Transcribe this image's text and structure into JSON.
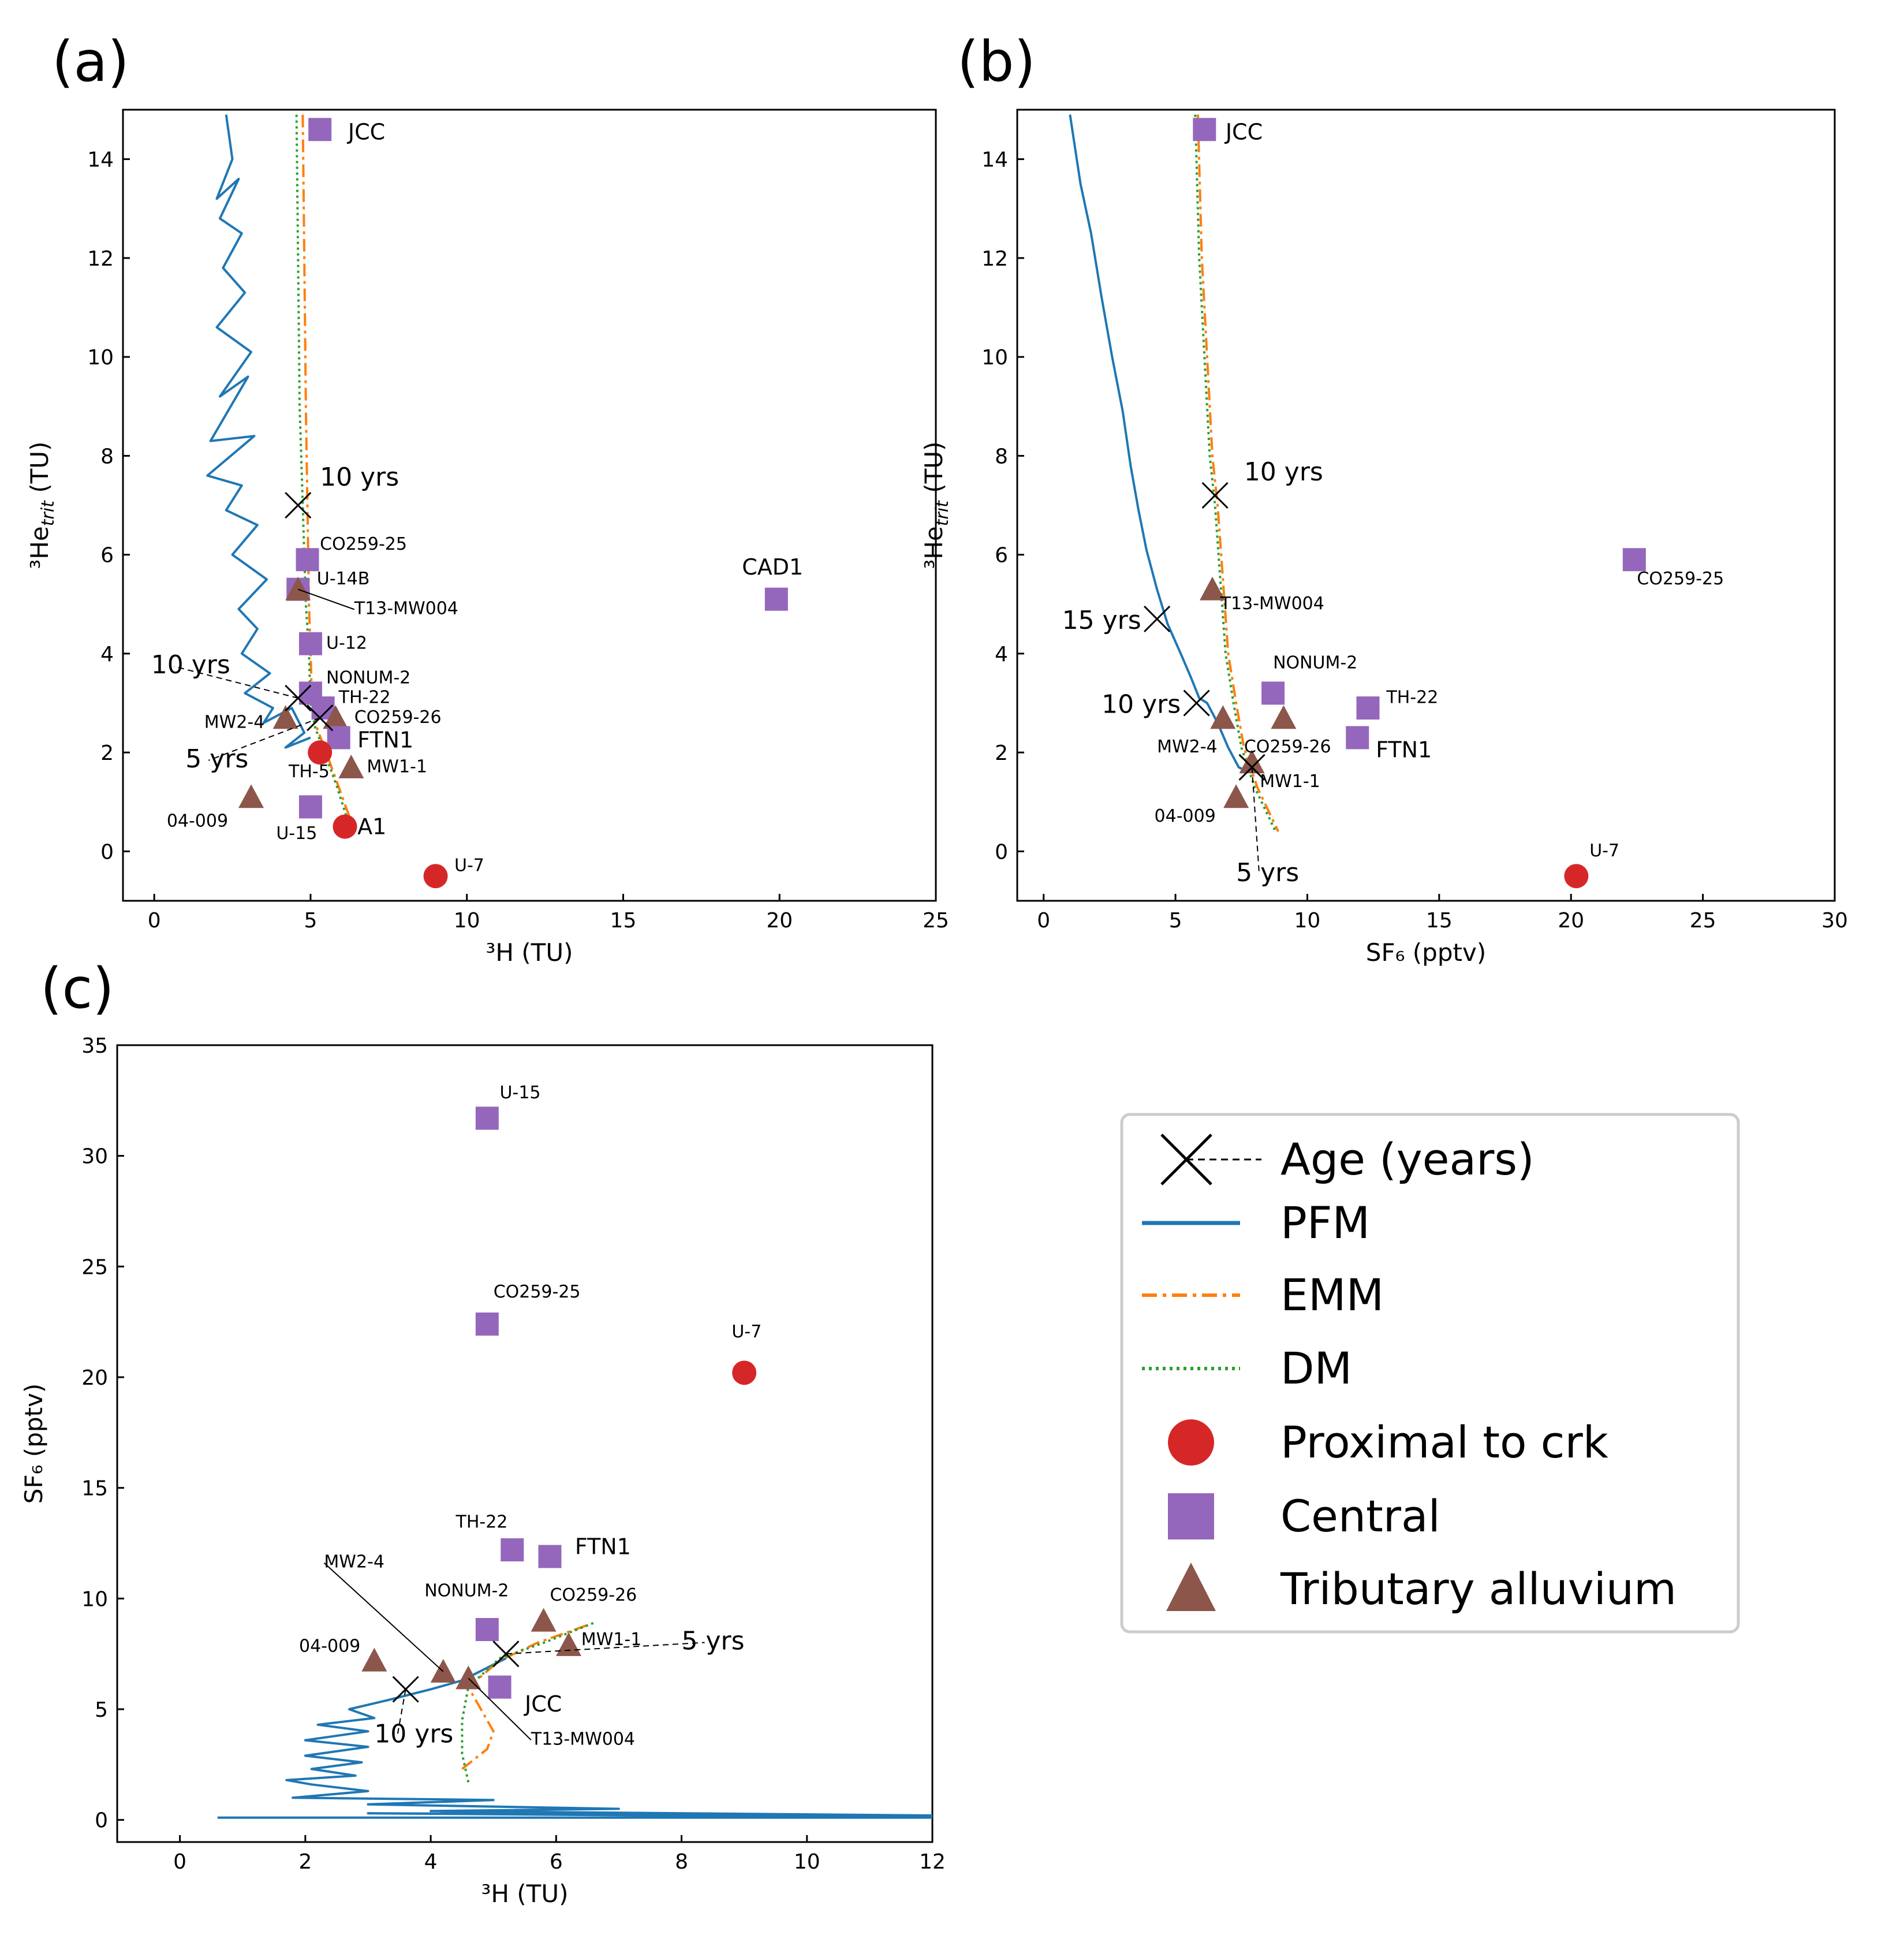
{
  "colors": {
    "pfm": "#1f77b4",
    "emm": "#ff7f0e",
    "dm": "#2ca02c",
    "proximal": "#d62728",
    "central": "#9467bd",
    "tributary": "#8c564b",
    "age": "#000000"
  },
  "legend": {
    "age": "Age (years)",
    "pfm": "PFM",
    "emm": "EMM",
    "dm": "DM",
    "proximal": "Proximal to crk",
    "central": "Central",
    "tributary": "Tributary alluvium"
  },
  "chart_data": [
    {
      "id": "a",
      "type": "scatter",
      "panel_label": "(a)",
      "xlabel": "³H (TU)",
      "ylabel": "³He",
      "ylabel_sub": "trit",
      "ylabel_unit": " (TU)",
      "xlim": [
        -1,
        25
      ],
      "ylim": [
        -1,
        15
      ],
      "xticks": [
        0,
        5,
        10,
        15,
        20,
        25
      ],
      "yticks": [
        0,
        2,
        4,
        6,
        8,
        10,
        12,
        14
      ],
      "models": {
        "pfm": [
          [
            2.3,
            14.9
          ],
          [
            2.5,
            14.0
          ],
          [
            2.0,
            13.2
          ],
          [
            2.7,
            13.6
          ],
          [
            2.1,
            12.8
          ],
          [
            2.8,
            12.5
          ],
          [
            2.2,
            11.8
          ],
          [
            2.9,
            11.3
          ],
          [
            2.0,
            10.6
          ],
          [
            3.1,
            10.1
          ],
          [
            2.1,
            9.2
          ],
          [
            3.0,
            9.6
          ],
          [
            1.8,
            8.3
          ],
          [
            3.2,
            8.4
          ],
          [
            1.7,
            7.6
          ],
          [
            2.8,
            7.4
          ],
          [
            2.3,
            6.9
          ],
          [
            3.3,
            6.6
          ],
          [
            2.5,
            6.0
          ],
          [
            3.6,
            5.5
          ],
          [
            2.7,
            4.9
          ],
          [
            3.3,
            4.5
          ],
          [
            2.8,
            4.0
          ],
          [
            3.7,
            3.6
          ],
          [
            2.9,
            3.2
          ],
          [
            3.8,
            2.9
          ],
          [
            3.5,
            2.6
          ],
          [
            4.4,
            2.9
          ],
          [
            4.8,
            2.4
          ],
          [
            4.2,
            2.1
          ],
          [
            5.0,
            2.3
          ]
        ],
        "emm": [
          [
            4.75,
            14.9
          ],
          [
            4.8,
            12.0
          ],
          [
            4.85,
            9.0
          ],
          [
            4.9,
            7.0
          ],
          [
            4.95,
            5.0
          ],
          [
            5.0,
            4.0
          ],
          [
            5.05,
            3.0
          ],
          [
            5.2,
            2.5
          ],
          [
            5.5,
            2.0
          ],
          [
            5.9,
            1.3
          ],
          [
            6.3,
            0.6
          ]
        ],
        "dm": [
          [
            4.55,
            14.9
          ],
          [
            4.6,
            12.0
          ],
          [
            4.65,
            9.0
          ],
          [
            4.75,
            7.0
          ],
          [
            4.85,
            5.0
          ],
          [
            4.95,
            4.0
          ],
          [
            5.0,
            3.0
          ],
          [
            5.15,
            2.5
          ],
          [
            5.45,
            2.0
          ],
          [
            5.85,
            1.3
          ],
          [
            6.2,
            0.6
          ]
        ]
      },
      "ages": [
        {
          "x": 4.6,
          "y": 7.0,
          "label": "10 yrs",
          "lx": 5.3,
          "ly": 7.4,
          "leader": false
        },
        {
          "x": 4.6,
          "y": 3.1,
          "label": "10 yrs",
          "lx": -0.1,
          "ly": 3.6,
          "leader": true
        },
        {
          "x": 5.3,
          "y": 2.7,
          "label": "5 yrs",
          "lx": 1.0,
          "ly": 1.7,
          "leader": true
        }
      ],
      "points": [
        {
          "label": "JCC",
          "x": 5.3,
          "y": 14.6,
          "group": "central",
          "lx": 6.2,
          "ly": 14.4,
          "big": true
        },
        {
          "label": "CO259-25",
          "x": 4.9,
          "y": 5.9,
          "group": "central",
          "lx": 5.3,
          "ly": 6.1
        },
        {
          "label": "U-14B",
          "x": 4.6,
          "y": 5.3,
          "group": "central",
          "lx": 5.2,
          "ly": 5.4
        },
        {
          "label": "T13-MW004",
          "x": 4.6,
          "y": 5.3,
          "group": "tributary",
          "lx": 6.4,
          "ly": 4.8,
          "leader": true
        },
        {
          "label": "U-12",
          "x": 5.0,
          "y": 4.2,
          "group": "central",
          "lx": 5.5,
          "ly": 4.1
        },
        {
          "label": "NONUM-2",
          "x": 5.0,
          "y": 3.2,
          "group": "central",
          "lx": 5.5,
          "ly": 3.4
        },
        {
          "label": "TH-22",
          "x": 5.4,
          "y": 2.9,
          "group": "central",
          "lx": 5.9,
          "ly": 3.0
        },
        {
          "label": "CO259-26",
          "x": 5.8,
          "y": 2.7,
          "group": "tributary",
          "lx": 6.4,
          "ly": 2.6
        },
        {
          "label": "MW2-4",
          "x": 4.2,
          "y": 2.7,
          "group": "tributary",
          "lx": 1.6,
          "ly": 2.5
        },
        {
          "label": "FTN1",
          "x": 5.9,
          "y": 2.3,
          "group": "central",
          "lx": 6.5,
          "ly": 2.1,
          "big": true
        },
        {
          "label": "",
          "x": 5.3,
          "y": 2.0,
          "group": "proximal"
        },
        {
          "label": "MW1-1",
          "x": 6.3,
          "y": 1.7,
          "group": "tributary",
          "lx": 6.8,
          "ly": 1.6
        },
        {
          "label": "TH-5",
          "x": 4.3,
          "y": 1.5,
          "group": "none",
          "lx": 4.3,
          "ly": 1.5
        },
        {
          "label": "04-009",
          "x": 3.1,
          "y": 1.1,
          "group": "tributary",
          "lx": 0.4,
          "ly": 0.5
        },
        {
          "label": "U-15",
          "x": 5.0,
          "y": 0.9,
          "group": "central",
          "lx": 3.9,
          "ly": 0.25
        },
        {
          "label": "A1",
          "x": 6.1,
          "y": 0.5,
          "group": "proximal",
          "lx": 6.5,
          "ly": 0.35,
          "big": true
        },
        {
          "label": "U-7",
          "x": 9.0,
          "y": -0.5,
          "group": "proximal",
          "lx": 9.6,
          "ly": -0.4
        },
        {
          "label": "CAD1",
          "x": 19.9,
          "y": 5.1,
          "group": "central",
          "lx": 18.8,
          "ly": 5.6,
          "big": true
        }
      ]
    },
    {
      "id": "b",
      "type": "scatter",
      "panel_label": "(b)",
      "xlabel": "SF₆ (pptv)",
      "ylabel": "³He",
      "ylabel_sub": "trit",
      "ylabel_unit": " (TU)",
      "xlim": [
        -1,
        30
      ],
      "ylim": [
        -1,
        15
      ],
      "xticks": [
        0,
        5,
        10,
        15,
        20,
        25,
        30
      ],
      "yticks": [
        0,
        2,
        4,
        6,
        8,
        10,
        12,
        14
      ],
      "models": {
        "pfm": [
          [
            1.0,
            14.9
          ],
          [
            1.4,
            13.5
          ],
          [
            1.8,
            12.5
          ],
          [
            2.2,
            11.2
          ],
          [
            2.6,
            10.0
          ],
          [
            3.0,
            8.9
          ],
          [
            3.3,
            7.8
          ],
          [
            3.6,
            6.9
          ],
          [
            3.9,
            6.1
          ],
          [
            4.3,
            5.3
          ],
          [
            4.7,
            4.6
          ],
          [
            5.2,
            4.0
          ],
          [
            5.6,
            3.5
          ],
          [
            5.9,
            3.1
          ],
          [
            6.2,
            3.0
          ],
          [
            6.6,
            2.6
          ],
          [
            7.0,
            2.1
          ],
          [
            7.4,
            1.7
          ],
          [
            7.8,
            1.6
          ]
        ],
        "emm": [
          [
            5.85,
            14.9
          ],
          [
            6.0,
            12.0
          ],
          [
            6.2,
            10.0
          ],
          [
            6.4,
            8.0
          ],
          [
            6.6,
            7.0
          ],
          [
            6.8,
            5.5
          ],
          [
            7.0,
            4.0
          ],
          [
            7.3,
            3.0
          ],
          [
            7.6,
            2.1
          ],
          [
            8.1,
            1.3
          ],
          [
            8.9,
            0.4
          ]
        ],
        "dm": [
          [
            5.75,
            14.9
          ],
          [
            5.9,
            12.0
          ],
          [
            6.1,
            10.0
          ],
          [
            6.3,
            8.0
          ],
          [
            6.5,
            7.0
          ],
          [
            6.7,
            5.5
          ],
          [
            6.9,
            4.0
          ],
          [
            7.2,
            3.0
          ],
          [
            7.5,
            2.1
          ],
          [
            8.0,
            1.3
          ],
          [
            8.8,
            0.4
          ]
        ]
      },
      "ages": [
        {
          "x": 6.5,
          "y": 7.2,
          "label": "10 yrs",
          "lx": 7.6,
          "ly": 7.5,
          "leader": false
        },
        {
          "x": 4.3,
          "y": 4.7,
          "label": "15 yrs",
          "lx": 0.7,
          "ly": 4.5,
          "leader": false
        },
        {
          "x": 5.8,
          "y": 3.0,
          "label": "10 yrs",
          "lx": 2.2,
          "ly": 2.8,
          "leader": false
        },
        {
          "x": 7.9,
          "y": 1.7,
          "label": "5 yrs",
          "lx": 7.3,
          "ly": -0.6,
          "leader": true
        }
      ],
      "points": [
        {
          "label": "JCC",
          "x": 6.1,
          "y": 14.6,
          "group": "central",
          "lx": 6.9,
          "ly": 14.4,
          "big": true
        },
        {
          "label": "CO259-25",
          "x": 22.4,
          "y": 5.9,
          "group": "central",
          "lx": 22.5,
          "ly": 5.4
        },
        {
          "label": "T13-MW004",
          "x": 6.4,
          "y": 5.3,
          "group": "tributary",
          "lx": 6.7,
          "ly": 4.9
        },
        {
          "label": "NONUM-2",
          "x": 8.7,
          "y": 3.2,
          "group": "central",
          "lx": 8.7,
          "ly": 3.7
        },
        {
          "label": "TH-22",
          "x": 12.3,
          "y": 2.9,
          "group": "central",
          "lx": 13.0,
          "ly": 3.0
        },
        {
          "label": "",
          "x": 6.8,
          "y": 2.7,
          "group": "tributary"
        },
        {
          "label": "",
          "x": 9.1,
          "y": 2.7,
          "group": "tributary"
        },
        {
          "label": "MW2-4",
          "x": 6.8,
          "y": 2.7,
          "group": "none",
          "lx": 4.3,
          "ly": 2.0
        },
        {
          "label": "CO259-26",
          "x": 7.9,
          "y": 1.8,
          "group": "tributary",
          "lx": 7.6,
          "ly": 2.0
        },
        {
          "label": "FTN1",
          "x": 11.9,
          "y": 2.3,
          "group": "central",
          "lx": 12.6,
          "ly": 1.9,
          "big": true
        },
        {
          "label": "MW1-1",
          "x": 8.2,
          "y": 1.5,
          "group": "none",
          "lx": 8.2,
          "ly": 1.3
        },
        {
          "label": "04-009",
          "x": 7.3,
          "y": 1.1,
          "group": "tributary",
          "lx": 4.2,
          "ly": 0.6
        },
        {
          "label": "U-7",
          "x": 20.2,
          "y": -0.5,
          "group": "proximal",
          "lx": 20.7,
          "ly": -0.1
        }
      ]
    },
    {
      "id": "c",
      "type": "scatter",
      "panel_label": "(c)",
      "xlabel": "³H (TU)",
      "ylabel": "SF₆ (pptv)",
      "xlim": [
        -1,
        12
      ],
      "ylim": [
        -1,
        35
      ],
      "xticks": [
        0,
        2,
        4,
        6,
        8,
        10,
        12
      ],
      "yticks": [
        0,
        5,
        10,
        15,
        20,
        25,
        30,
        35
      ],
      "models": {
        "pfm": [
          [
            0.6,
            0.1
          ],
          [
            12,
            0.1
          ],
          [
            3,
            0.3
          ],
          [
            12,
            0.2
          ],
          [
            4,
            0.4
          ],
          [
            7,
            0.5
          ],
          [
            3,
            0.7
          ],
          [
            5,
            0.9
          ],
          [
            1.8,
            1.0
          ],
          [
            3,
            1.3
          ],
          [
            2.1,
            1.6
          ],
          [
            1.7,
            1.8
          ],
          [
            2.8,
            2.0
          ],
          [
            2.1,
            2.3
          ],
          [
            2.9,
            2.6
          ],
          [
            2.0,
            2.9
          ],
          [
            3.0,
            3.3
          ],
          [
            2.0,
            3.6
          ],
          [
            3.0,
            4.0
          ],
          [
            2.2,
            4.3
          ],
          [
            3.1,
            4.6
          ],
          [
            2.7,
            5.0
          ],
          [
            3.3,
            5.4
          ],
          [
            4.0,
            5.9
          ],
          [
            4.5,
            6.3
          ],
          [
            5.2,
            7.3
          ]
        ],
        "emm": [
          [
            4.5,
            2.3
          ],
          [
            4.9,
            3.2
          ],
          [
            5.0,
            4.0
          ],
          [
            4.8,
            5.0
          ],
          [
            4.6,
            6.0
          ],
          [
            5.1,
            7.2
          ],
          [
            5.7,
            8.0
          ],
          [
            6.5,
            8.8
          ]
        ],
        "dm": [
          [
            4.6,
            1.7
          ],
          [
            4.5,
            3.0
          ],
          [
            4.5,
            4.5
          ],
          [
            4.6,
            6.0
          ],
          [
            5.1,
            7.3
          ],
          [
            5.8,
            8.0
          ],
          [
            6.6,
            8.9
          ]
        ]
      },
      "ages": [
        {
          "x": 3.6,
          "y": 5.9,
          "label": "10 yrs",
          "lx": 3.1,
          "ly": 3.5,
          "leader": true
        },
        {
          "x": 5.2,
          "y": 7.5,
          "label": "5 yrs",
          "lx": 8.0,
          "ly": 7.7,
          "leader": true
        }
      ],
      "points": [
        {
          "label": "U-15",
          "x": 4.9,
          "y": 31.7,
          "group": "central",
          "lx": 5.1,
          "ly": 32.6
        },
        {
          "label": "CO259-25",
          "x": 4.9,
          "y": 22.4,
          "group": "central",
          "lx": 5.0,
          "ly": 23.6
        },
        {
          "label": "U-7",
          "x": 9.0,
          "y": 20.2,
          "group": "proximal",
          "lx": 8.8,
          "ly": 21.8
        },
        {
          "label": "TH-22",
          "x": 5.3,
          "y": 12.2,
          "group": "central",
          "lx": 4.4,
          "ly": 13.2
        },
        {
          "label": "FTN1",
          "x": 5.9,
          "y": 11.9,
          "group": "central",
          "lx": 6.3,
          "ly": 12.0,
          "big": true
        },
        {
          "label": "MW2-4",
          "x": 4.2,
          "y": 6.7,
          "group": "tributary",
          "lx": 2.3,
          "ly": 11.4,
          "leader": true
        },
        {
          "label": "NONUM-2",
          "x": 4.9,
          "y": 8.6,
          "group": "central",
          "lx": 3.9,
          "ly": 10.1
        },
        {
          "label": "CO259-26",
          "x": 5.8,
          "y": 9.0,
          "group": "tributary",
          "lx": 5.9,
          "ly": 9.9
        },
        {
          "label": "MW1-1",
          "x": 6.2,
          "y": 7.9,
          "group": "tributary",
          "lx": 6.4,
          "ly": 7.9
        },
        {
          "label": "04-009",
          "x": 3.1,
          "y": 7.2,
          "group": "tributary",
          "lx": 1.9,
          "ly": 7.6
        },
        {
          "label": "JCC",
          "x": 5.1,
          "y": 6.0,
          "group": "central",
          "lx": 5.5,
          "ly": 4.9,
          "big": true
        },
        {
          "label": "T13-MW004",
          "x": 4.6,
          "y": 6.4,
          "group": "tributary",
          "lx": 5.6,
          "ly": 3.4,
          "leader": true
        }
      ]
    }
  ]
}
